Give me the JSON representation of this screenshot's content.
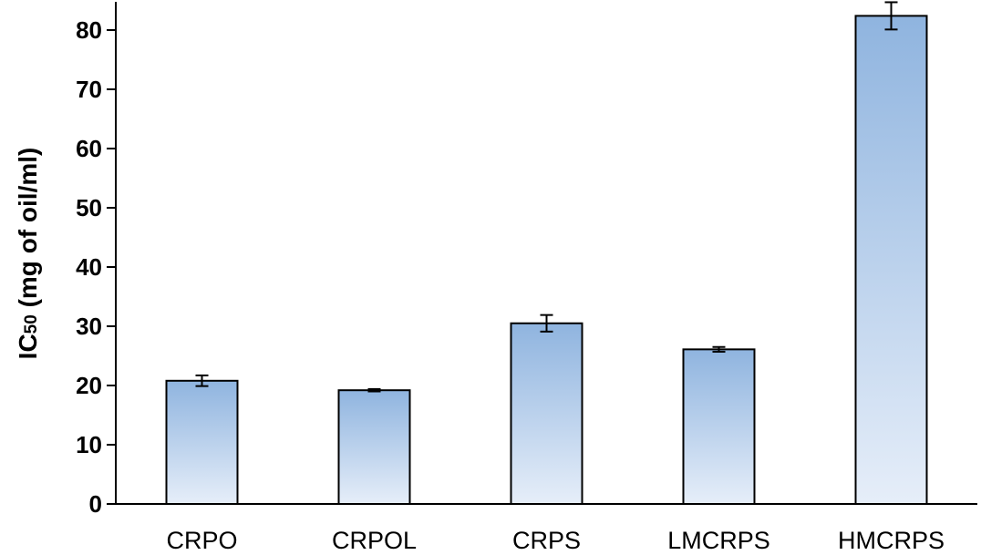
{
  "chart_data": {
    "type": "bar",
    "categories": [
      "CRPO",
      "CRPOL",
      "CRPS",
      "LMCRPS",
      "HMCRPS"
    ],
    "values": [
      20.8,
      19.2,
      30.5,
      26.1,
      82.4
    ],
    "errors": [
      0.9,
      0.2,
      1.4,
      0.4,
      2.3
    ],
    "ylabel_main": "IC",
    "ylabel_sub": "50",
    "ylabel_rest": " (mg of oil/ml)",
    "ylim": [
      0,
      85
    ],
    "yticks": [
      0,
      10,
      20,
      30,
      40,
      50,
      60,
      70,
      80
    ],
    "grid": false,
    "bar_gradient": {
      "top": "#8fb4df",
      "bottom": "#e6eef9"
    },
    "bar_outline": "#000000"
  }
}
